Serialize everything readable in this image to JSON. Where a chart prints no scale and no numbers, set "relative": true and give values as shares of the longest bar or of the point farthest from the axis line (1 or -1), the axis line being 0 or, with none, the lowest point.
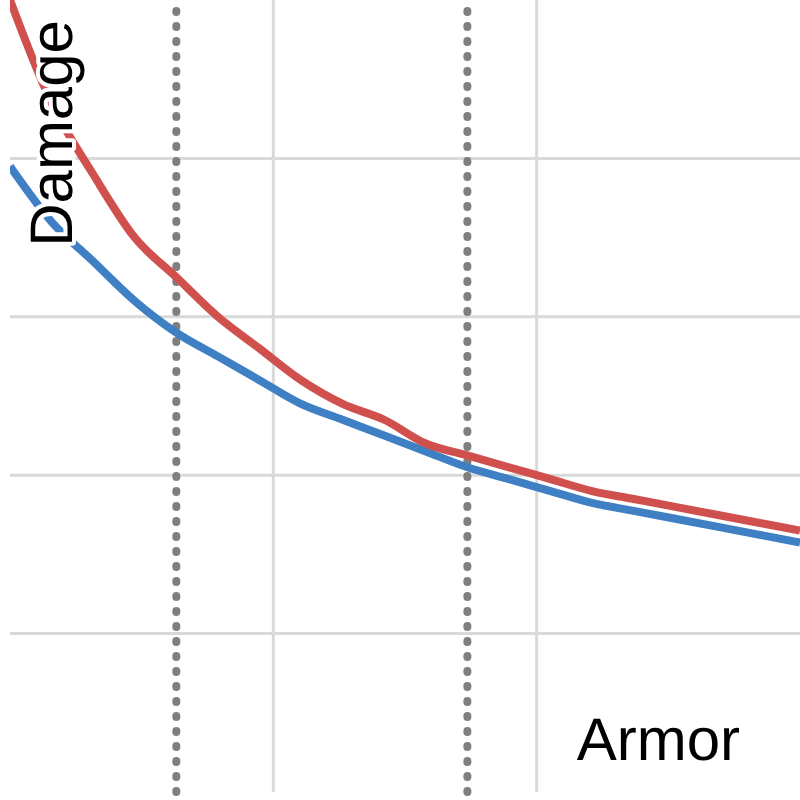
{
  "chart_data": {
    "type": "line",
    "xlabel": "Armor",
    "ylabel": "Damage",
    "relative": true,
    "grid": true,
    "legend": false,
    "marker": "none",
    "line_style": "solid",
    "categories": [
      null,
      null,
      null,
      null,
      null,
      null,
      null,
      null,
      null,
      null,
      null,
      null,
      null,
      null,
      null,
      null,
      null,
      null,
      null,
      null
    ],
    "series": [
      {
        "color": "#3f7fc4",
        "values": [
          0.79,
          0.72,
          0.67,
          0.62,
          0.58,
          0.55,
          0.52,
          0.49,
          0.47,
          0.45,
          0.43,
          0.41,
          0.395,
          0.38,
          0.365,
          0.355,
          0.345,
          0.335,
          0.325,
          0.315
        ]
      },
      {
        "color": "#d0504d",
        "values": [
          1,
          0.87,
          0.78,
          0.7,
          0.65,
          0.6,
          0.56,
          0.52,
          0.49,
          0.47,
          0.44,
          0.425,
          0.41,
          0.395,
          0.38,
          0.37,
          0.36,
          0.35,
          0.34,
          0.33
        ]
      }
    ]
  }
}
